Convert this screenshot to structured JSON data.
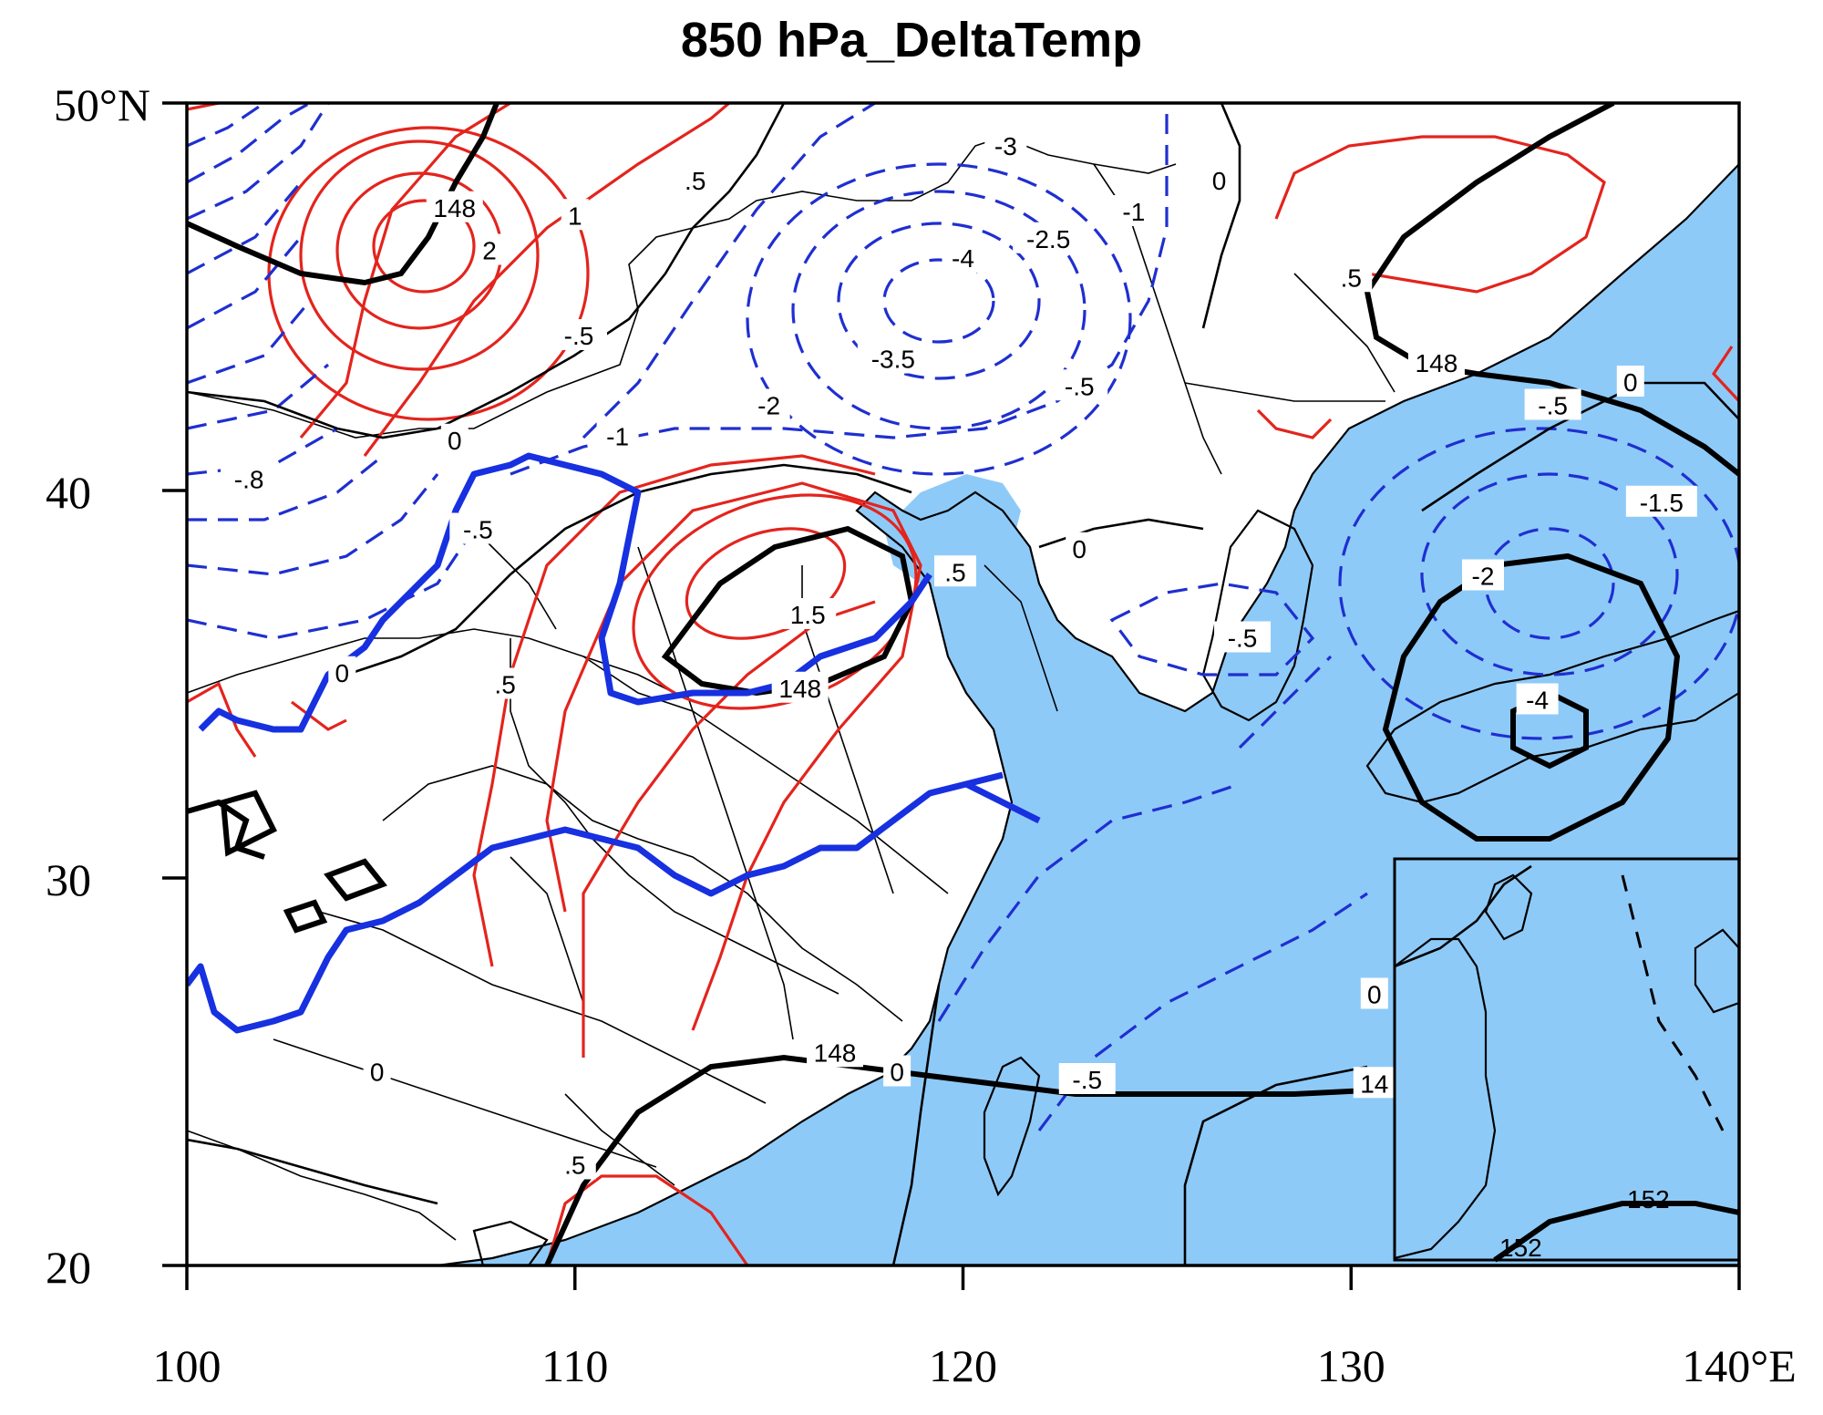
{
  "title": "850 hPa_DeltaTemp",
  "axes": {
    "x_ticks": [
      "100",
      "110",
      "120",
      "130",
      "140°E"
    ],
    "y_ticks": [
      "20",
      "30",
      "40",
      "50°N"
    ],
    "lon_range": [
      100,
      140
    ],
    "lat_range": [
      20,
      50
    ]
  },
  "colors": {
    "sea": "#8ecaf8",
    "positive_contour": "#e3241d",
    "negative_contour": "#1f2fd0",
    "zero_contour": "#000000",
    "thick_blue_line": "#1730e0"
  },
  "contour_labels": [
    {
      "text": "148",
      "lon": 106.9,
      "lat": 47.3
    },
    {
      "text": "2",
      "lon": 107.8,
      "lat": 46.2
    },
    {
      "text": "1",
      "lon": 110.0,
      "lat": 47.1
    },
    {
      "text": ".5",
      "lon": 113.1,
      "lat": 48.0
    },
    {
      "text": "-.5",
      "lon": 110.1,
      "lat": 44.0
    },
    {
      "text": "0",
      "lon": 106.9,
      "lat": 41.3
    },
    {
      "text": "-.8",
      "lon": 101.6,
      "lat": 40.3
    },
    {
      "text": "-.5",
      "lon": 107.5,
      "lat": 39.0
    },
    {
      "text": "0",
      "lon": 104.0,
      "lat": 35.3
    },
    {
      "text": ".5",
      "lon": 108.2,
      "lat": 35.0
    },
    {
      "text": "-1",
      "lon": 111.1,
      "lat": 41.4
    },
    {
      "text": "-2",
      "lon": 115.0,
      "lat": 42.2
    },
    {
      "text": "-3.5",
      "lon": 118.2,
      "lat": 43.4
    },
    {
      "text": "-4",
      "lon": 120.0,
      "lat": 46.0
    },
    {
      "text": "-3",
      "lon": 121.1,
      "lat": 48.9
    },
    {
      "text": "-2.5",
      "lon": 122.2,
      "lat": 46.5
    },
    {
      "text": "-1",
      "lon": 124.4,
      "lat": 47.2
    },
    {
      "text": "-.5",
      "lon": 123.0,
      "lat": 42.7
    },
    {
      "text": "0",
      "lon": 126.6,
      "lat": 48.0
    },
    {
      "text": ".5",
      "lon": 130.0,
      "lat": 45.5
    },
    {
      "text": "148",
      "lon": 132.2,
      "lat": 43.3
    },
    {
      "text": "-.5",
      "lon": 135.2,
      "lat": 42.2
    },
    {
      "text": "0",
      "lon": 137.2,
      "lat": 42.8
    },
    {
      "text": "-1.5",
      "lon": 138.0,
      "lat": 39.7
    },
    {
      "text": "-2",
      "lon": 133.4,
      "lat": 37.8
    },
    {
      "text": "-.5",
      "lon": 127.2,
      "lat": 36.2
    },
    {
      "text": "1.5",
      "lon": 116.0,
      "lat": 36.8
    },
    {
      "text": ".5",
      "lon": 119.8,
      "lat": 37.9
    },
    {
      "text": "0",
      "lon": 123.0,
      "lat": 38.5
    },
    {
      "text": "148",
      "lon": 115.8,
      "lat": 34.9
    },
    {
      "text": "0",
      "lon": 104.9,
      "lat": 25.0
    },
    {
      "text": "148",
      "lon": 116.7,
      "lat": 25.5
    },
    {
      "text": "0",
      "lon": 118.3,
      "lat": 25.0
    },
    {
      "text": "-.5",
      "lon": 123.2,
      "lat": 24.8
    },
    {
      "text": ".5",
      "lon": 110.0,
      "lat": 22.6
    },
    {
      "text": "-4",
      "lon": 134.8,
      "lat": 34.6
    },
    {
      "text": "0",
      "lon": 130.6,
      "lat": 27.0
    },
    {
      "text": "14",
      "lon": 130.6,
      "lat": 24.7
    }
  ],
  "inset_labels": [
    "152",
    "152"
  ]
}
